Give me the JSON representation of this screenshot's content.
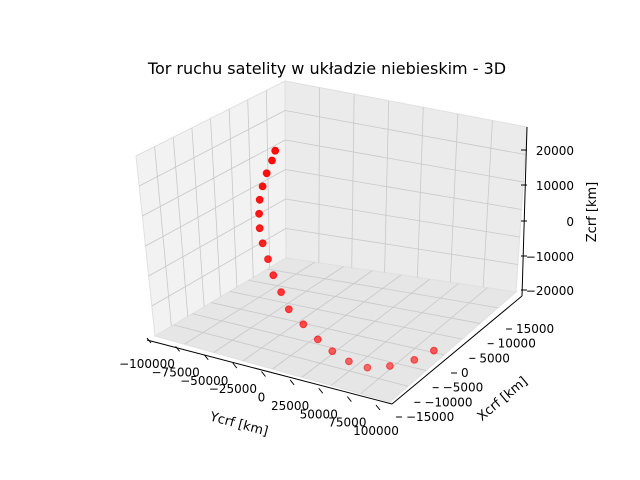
{
  "chart_data": {
    "type": "scatter",
    "projection": "3d",
    "title": "Tor ruchu satelity w układzie niebieskim - 3D",
    "xlabel": "Ycrf [km]",
    "ylabel": "Xcrf [km]",
    "zlabel": "Zcrf [km]",
    "xticks": [
      "−100000",
      "−75000",
      "−50000",
      "−25000",
      "0",
      "25000",
      "50000",
      "75000",
      "100000"
    ],
    "yticks": [
      "−15000",
      "−10000",
      "−5000",
      "0",
      "5000",
      "10000",
      "15000"
    ],
    "zticks": [
      "−20000",
      "−10000",
      "0",
      "10000",
      "20000"
    ],
    "grid": true,
    "marker_color": "#ff0000",
    "series": [
      {
        "points_screen_order": [
          [
            -98000,
            12000,
            8000
          ],
          [
            -97000,
            11000,
            6000
          ],
          [
            -94000,
            9000,
            4000
          ],
          [
            -90000,
            7000,
            2000
          ],
          [
            -85000,
            5000,
            0
          ],
          [
            -78000,
            3000,
            -2000
          ],
          [
            -70000,
            1000,
            -4000
          ],
          [
            -60000,
            -1000,
            -6000
          ],
          [
            -48000,
            -3000,
            -8000
          ],
          [
            -36000,
            -5000,
            -10000
          ],
          [
            -22000,
            -7000,
            -12000
          ],
          [
            -8000,
            -9000,
            -14000
          ],
          [
            8000,
            -10000,
            -16000
          ],
          [
            24000,
            -11000,
            -18000
          ],
          [
            40000,
            -12000,
            -19000
          ],
          [
            56000,
            -12500,
            -20000
          ],
          [
            70000,
            -12000,
            -21000
          ],
          [
            82000,
            -10000,
            -21500
          ],
          [
            92000,
            -7000,
            -22000
          ],
          [
            98000,
            -4000,
            -22000
          ]
        ]
      }
    ]
  }
}
